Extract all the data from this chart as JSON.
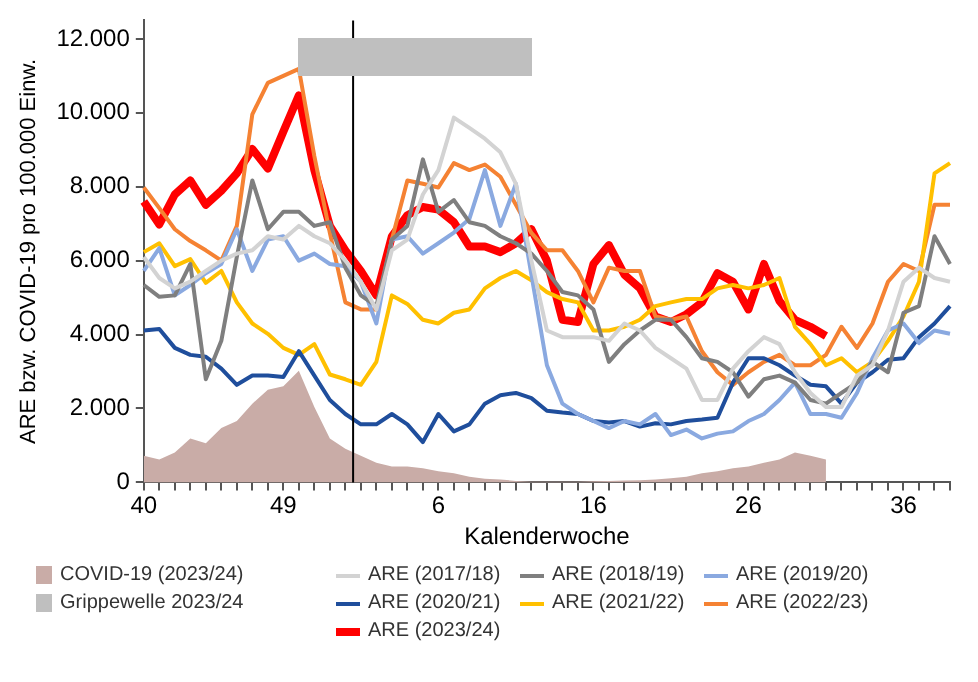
{
  "chart_data": {
    "type": "line",
    "ylabel": "ARE bzw. COVID-19 pro 100.000 Einw.",
    "xlabel": "Kalenderwoche",
    "categories": [
      "40",
      null,
      null,
      null,
      null,
      null,
      null,
      null,
      null,
      "49",
      null,
      null,
      null,
      null,
      null,
      null,
      null,
      null,
      null,
      "6",
      null,
      null,
      null,
      null,
      null,
      null,
      null,
      null,
      null,
      "16",
      null,
      null,
      null,
      null,
      null,
      null,
      null,
      null,
      null,
      "26",
      null,
      null,
      null,
      null,
      null,
      null,
      null,
      null,
      null,
      "36",
      null,
      null,
      null
    ],
    "ylim": [
      0,
      12500
    ],
    "yticks": [
      {
        "value": 0,
        "label": "0"
      },
      {
        "value": 2000,
        "label": "2.000"
      },
      {
        "value": 4000,
        "label": "4.000"
      },
      {
        "value": 6000,
        "label": "6.000"
      },
      {
        "value": 8000,
        "label": "8.000"
      },
      {
        "value": 10000,
        "label": "10.000"
      },
      {
        "value": 12000,
        "label": "12.000"
      }
    ],
    "grid": false,
    "legend": "bottom",
    "marker": "none",
    "line_style": "solid",
    "annotations": [
      "Grippewelle 2023/24"
    ],
    "series": [
      {
        "type": "area",
        "name": "COVID-19 (2023/24)",
        "color": "#c9aca7",
        "values": [
          720,
          620,
          810,
          1190,
          1060,
          1470,
          1660,
          2130,
          2510,
          2600,
          3020,
          2040,
          1190,
          910,
          720,
          530,
          430,
          430,
          380,
          300,
          250,
          150,
          100,
          80,
          40,
          20,
          20,
          20,
          20,
          30,
          40,
          50,
          60,
          80,
          110,
          150,
          250,
          300,
          380,
          430,
          530,
          620,
          810,
          720,
          620,
          null,
          null,
          null,
          null,
          null,
          null,
          null,
          null
        ]
      },
      {
        "name": "ARE (2017/18)",
        "color": "#d3d3d3",
        "values": [
          6100,
          5530,
          5250,
          5430,
          5720,
          6000,
          6190,
          6280,
          6660,
          6570,
          6940,
          6660,
          6470,
          6000,
          5430,
          4680,
          6280,
          6570,
          7790,
          8450,
          9870,
          9590,
          9300,
          8930,
          8080,
          6000,
          4110,
          3930,
          3930,
          3930,
          3830,
          4300,
          4110,
          3640,
          3360,
          3080,
          2230,
          2230,
          3080,
          3550,
          3930,
          3740,
          2980,
          2420,
          2040,
          2040,
          2890,
          3170,
          4110,
          5430,
          5810,
          5530,
          5430
        ]
      },
      {
        "name": "ARE (2018/19)",
        "color": "#7f7f7f",
        "values": [
          5340,
          5020,
          5060,
          5910,
          2790,
          3830,
          6100,
          8170,
          6850,
          7320,
          7320,
          6940,
          7040,
          5810,
          5060,
          4770,
          6570,
          6940,
          8740,
          7320,
          7640,
          7040,
          6940,
          6660,
          6470,
          6190,
          5720,
          5150,
          5060,
          4680,
          3260,
          3740,
          4110,
          4400,
          4400,
          3930,
          3360,
          3260,
          2980,
          2320,
          2790,
          2890,
          2700,
          2230,
          2130,
          2420,
          2700,
          3260,
          2980,
          4590,
          4770,
          6660,
          5910
        ]
      },
      {
        "name": "ARE (2019/20)",
        "color": "#8aa9e0",
        "values": [
          5720,
          6340,
          5060,
          5340,
          5660,
          5910,
          6850,
          5720,
          6570,
          6660,
          6000,
          6190,
          5910,
          5850,
          5430,
          4300,
          6570,
          6660,
          6190,
          6470,
          6760,
          7130,
          8450,
          6940,
          8080,
          5620,
          3170,
          2130,
          1850,
          1660,
          1470,
          1660,
          1570,
          1850,
          1280,
          1430,
          1190,
          1320,
          1380,
          1660,
          1850,
          2230,
          2700,
          1850,
          1850,
          1750,
          2420,
          3360,
          4110,
          4300,
          3770,
          4110,
          4020
        ]
      },
      {
        "name": "ARE (2020/21)",
        "color": "#1f4e9c",
        "values": [
          4110,
          4150,
          3640,
          3450,
          3400,
          3080,
          2640,
          2890,
          2890,
          2850,
          3550,
          2890,
          2230,
          1850,
          1570,
          1570,
          1850,
          1570,
          1090,
          1850,
          1380,
          1570,
          2130,
          2360,
          2420,
          2280,
          1940,
          1890,
          1850,
          1660,
          1620,
          1660,
          1510,
          1600,
          1570,
          1660,
          1700,
          1750,
          2700,
          3360,
          3360,
          3170,
          2890,
          2640,
          2600,
          2130,
          2700,
          2980,
          3320,
          3360,
          3930,
          4300,
          4770
        ]
      },
      {
        "name": "ARE (2021/22)",
        "color": "#ffc000",
        "values": [
          6230,
          6470,
          5850,
          6040,
          5400,
          5720,
          4870,
          4300,
          4020,
          3640,
          3450,
          3740,
          2920,
          2790,
          2640,
          3260,
          5060,
          4830,
          4400,
          4300,
          4590,
          4680,
          5250,
          5530,
          5720,
          5470,
          5150,
          4960,
          4870,
          4110,
          4110,
          4210,
          4400,
          4770,
          4870,
          4960,
          4960,
          5250,
          5340,
          5250,
          5340,
          5530,
          4210,
          3740,
          3170,
          3360,
          2980,
          3260,
          3830,
          4490,
          5430,
          8360,
          8640
        ]
      },
      {
        "name": "ARE (2022/23)",
        "color": "#f58233",
        "values": [
          7980,
          7420,
          6850,
          6530,
          6280,
          6000,
          6940,
          9960,
          10810,
          11000,
          11190,
          8830,
          6750,
          4870,
          4680,
          4680,
          6570,
          8170,
          8080,
          7980,
          8640,
          8450,
          8600,
          8270,
          7510,
          6750,
          6280,
          6280,
          5720,
          4870,
          5810,
          5720,
          5720,
          4490,
          4400,
          4490,
          3550,
          2980,
          2640,
          2980,
          3260,
          3450,
          3170,
          3170,
          3450,
          4210,
          3640,
          4300,
          5430,
          5910,
          5720,
          7510,
          7510
        ]
      },
      {
        "name": "ARE (2023/24)",
        "color": "#ff0000",
        "values": [
          7600,
          6980,
          7790,
          8170,
          7510,
          7890,
          8360,
          9020,
          8490,
          9490,
          10470,
          8450,
          6940,
          6280,
          5720,
          5060,
          6660,
          7230,
          7450,
          7380,
          7040,
          6380,
          6380,
          6230,
          6470,
          6850,
          6000,
          4400,
          4340,
          5910,
          6420,
          5620,
          5250,
          4490,
          4340,
          4550,
          4870,
          5660,
          5430,
          4680,
          5910,
          4910,
          4400,
          4210,
          3960,
          null,
          null,
          null,
          null,
          null,
          null,
          null,
          null
        ]
      }
    ]
  }
}
